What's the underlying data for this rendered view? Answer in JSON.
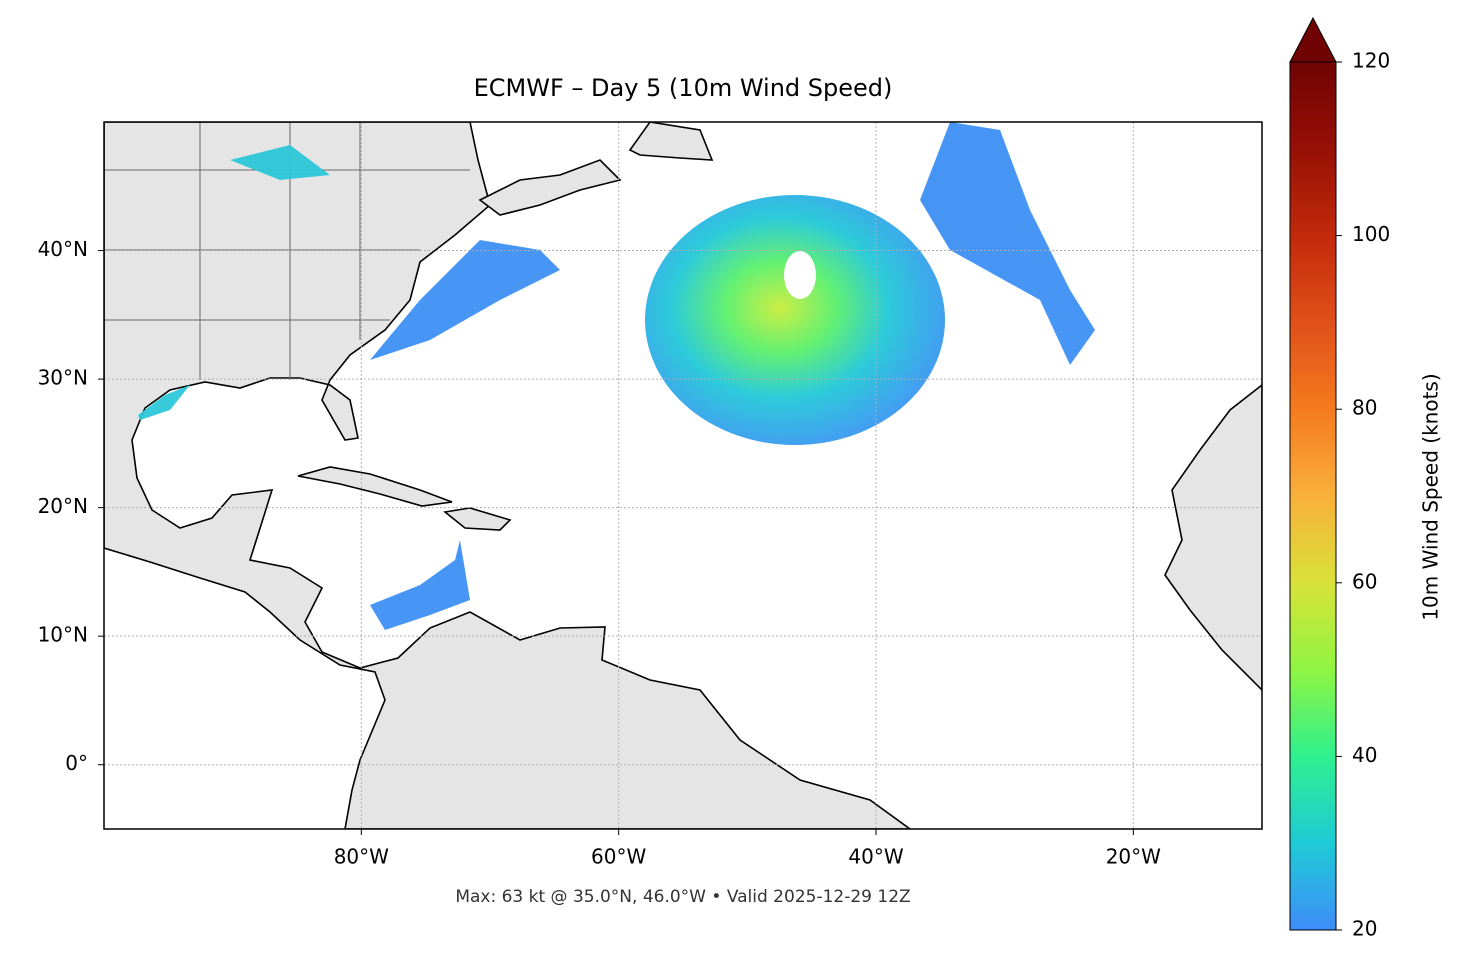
{
  "title": "ECMWF – Day 5 (10m Wind Speed)",
  "map": {
    "lonlim": [
      -100,
      -10
    ],
    "latlim": [
      -5,
      50
    ],
    "lon_ticks": [
      {
        "value": -80,
        "label": "80°W"
      },
      {
        "value": -60,
        "label": "60°W"
      },
      {
        "value": -40,
        "label": "40°W"
      },
      {
        "value": -20,
        "label": "20°W"
      }
    ],
    "lat_ticks": [
      {
        "value": 0,
        "label": "0°"
      },
      {
        "value": 10,
        "label": "10°N"
      },
      {
        "value": 20,
        "label": "20°N"
      },
      {
        "value": 30,
        "label": "30°N"
      },
      {
        "value": 40,
        "label": "40°N"
      }
    ],
    "grid": true
  },
  "colorbar": {
    "label": "10m Wind Speed (knots)",
    "lim": [
      20,
      120
    ],
    "ticks": [
      20,
      40,
      60,
      80,
      100,
      120
    ],
    "colors": [
      "#3f8cf8",
      "#1ecbd6",
      "#2ef08e",
      "#8ff542",
      "#d9e23a",
      "#f9b03a",
      "#f57a1e",
      "#e0501a",
      "#c22a0a",
      "#961006",
      "#700303"
    ]
  },
  "footer": "Max: 63 kt @ 35.0°N, 46.0°W • Valid 2025-12-29 12Z"
}
